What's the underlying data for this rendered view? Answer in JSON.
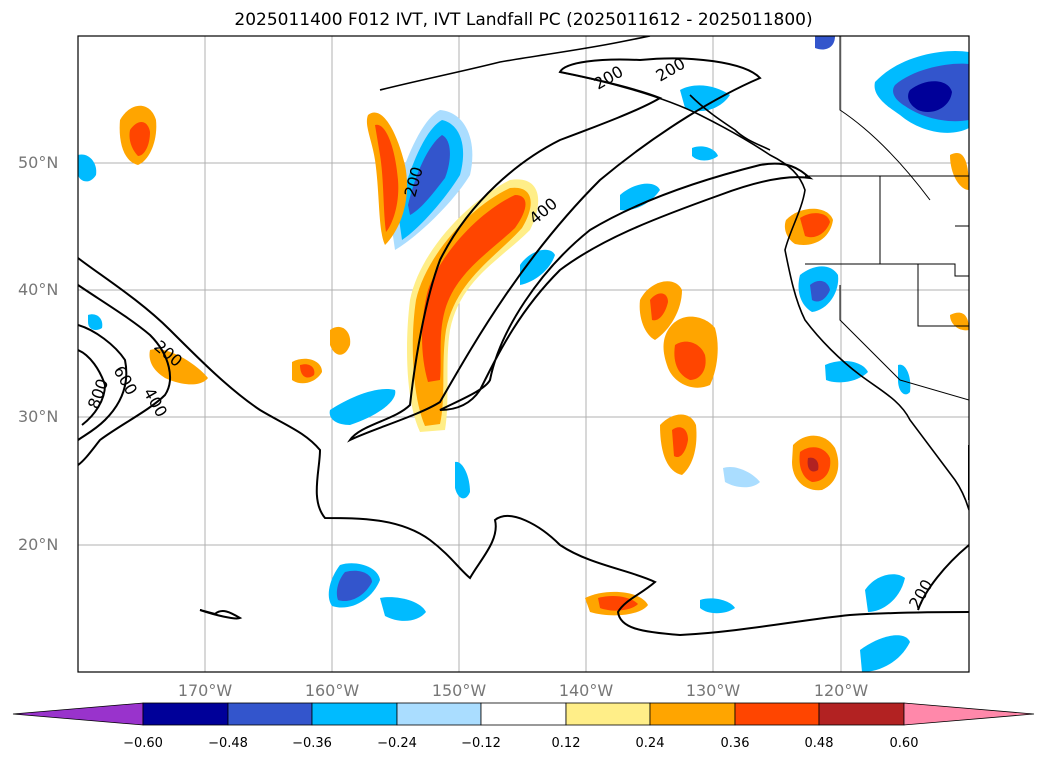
{
  "title": "2025011400 F012 IVT, IVT Landfall PC (2025011612 - 2025011800)",
  "lat_labels": [
    "50°N",
    "40°N",
    "30°N",
    "20°N"
  ],
  "lon_labels": [
    "170°W",
    "160°W",
    "150°W",
    "140°W",
    "130°W",
    "120°W"
  ],
  "contour_labels": [
    "200",
    "200",
    "400",
    "200",
    "400",
    "600",
    "800",
    "200",
    "200"
  ],
  "colorbar": {
    "ticks": [
      "−0.60",
      "−0.48",
      "−0.36",
      "−0.24",
      "−0.12",
      "0.12",
      "0.24",
      "0.36",
      "0.48",
      "0.60"
    ],
    "colors": [
      "#9933cc",
      "#000099",
      "#3355cc",
      "#00bbff",
      "#aaddff",
      "#ffffff",
      "#ffee88",
      "#ffa500",
      "#ff4500",
      "#b22222",
      "#ff88aa"
    ]
  }
}
